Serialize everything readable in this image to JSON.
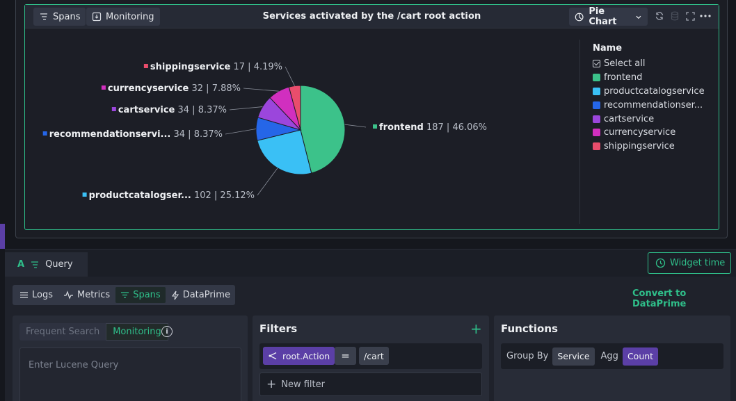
{
  "widget": {
    "title": "Services activated by the /cart root action",
    "tabs": [
      {
        "label": "Spans",
        "icon": "spans-icon"
      },
      {
        "label": "Monitoring",
        "icon": "monitoring-icon"
      }
    ],
    "chart_type_label": "Pie Chart",
    "header_icons": [
      "refresh-icon",
      "database-icon",
      "fullscreen-icon",
      "more-icon"
    ]
  },
  "chart_data": {
    "type": "pie",
    "title": "Services activated by the /cart root action",
    "slices": [
      {
        "name": "frontend",
        "label": "frontend",
        "value": 187,
        "percent": "46.06%",
        "color": "#3cc28a"
      },
      {
        "name": "productcatalogservice",
        "label": "productcatalogser...",
        "value": 102,
        "percent": "25.12%",
        "color": "#3ac0f5"
      },
      {
        "name": "recommendationservice",
        "label": "recommendationservi...",
        "value": 34,
        "percent": "8.37%",
        "color": "#2566e8"
      },
      {
        "name": "cartservice",
        "label": "cartservice",
        "value": 34,
        "percent": "8.37%",
        "color": "#9b46dc"
      },
      {
        "name": "currencyservice",
        "label": "currencyservice",
        "value": 32,
        "percent": "7.88%",
        "color": "#d12fbf"
      },
      {
        "name": "shippingservice",
        "label": "shippingservice",
        "value": 17,
        "percent": "4.19%",
        "color": "#e94d6c"
      }
    ],
    "legend_placement": "right"
  },
  "legend": {
    "title": "Name",
    "select_all": "Select all",
    "items": [
      "frontend",
      "productcatalogservice",
      "recommendationser...",
      "cartservice",
      "currencyservice",
      "shippingservice"
    ]
  },
  "query": {
    "tab_letter": "A",
    "tab_label": "Query",
    "widget_time": "Widget time",
    "data_types": [
      "Logs",
      "Metrics",
      "Spans",
      "DataPrime"
    ],
    "active_data_type": "Spans",
    "convert_link": "Convert to DataPrime",
    "search_modes": [
      "Frequent Search",
      "Monitoring"
    ],
    "active_search_mode": "Monitoring",
    "lucene_placeholder": "Enter Lucene Query"
  },
  "filters": {
    "title": "Filters",
    "field": "root.Action",
    "operator": "=",
    "value": "/cart",
    "new_filter": "New filter"
  },
  "functions": {
    "title": "Functions",
    "group_by_label": "Group By",
    "group_by_value": "Service",
    "agg_label": "Agg",
    "agg_value": "Count"
  },
  "colors": {
    "accent": "#2fbf8a",
    "purple": "#5b3fa6"
  }
}
